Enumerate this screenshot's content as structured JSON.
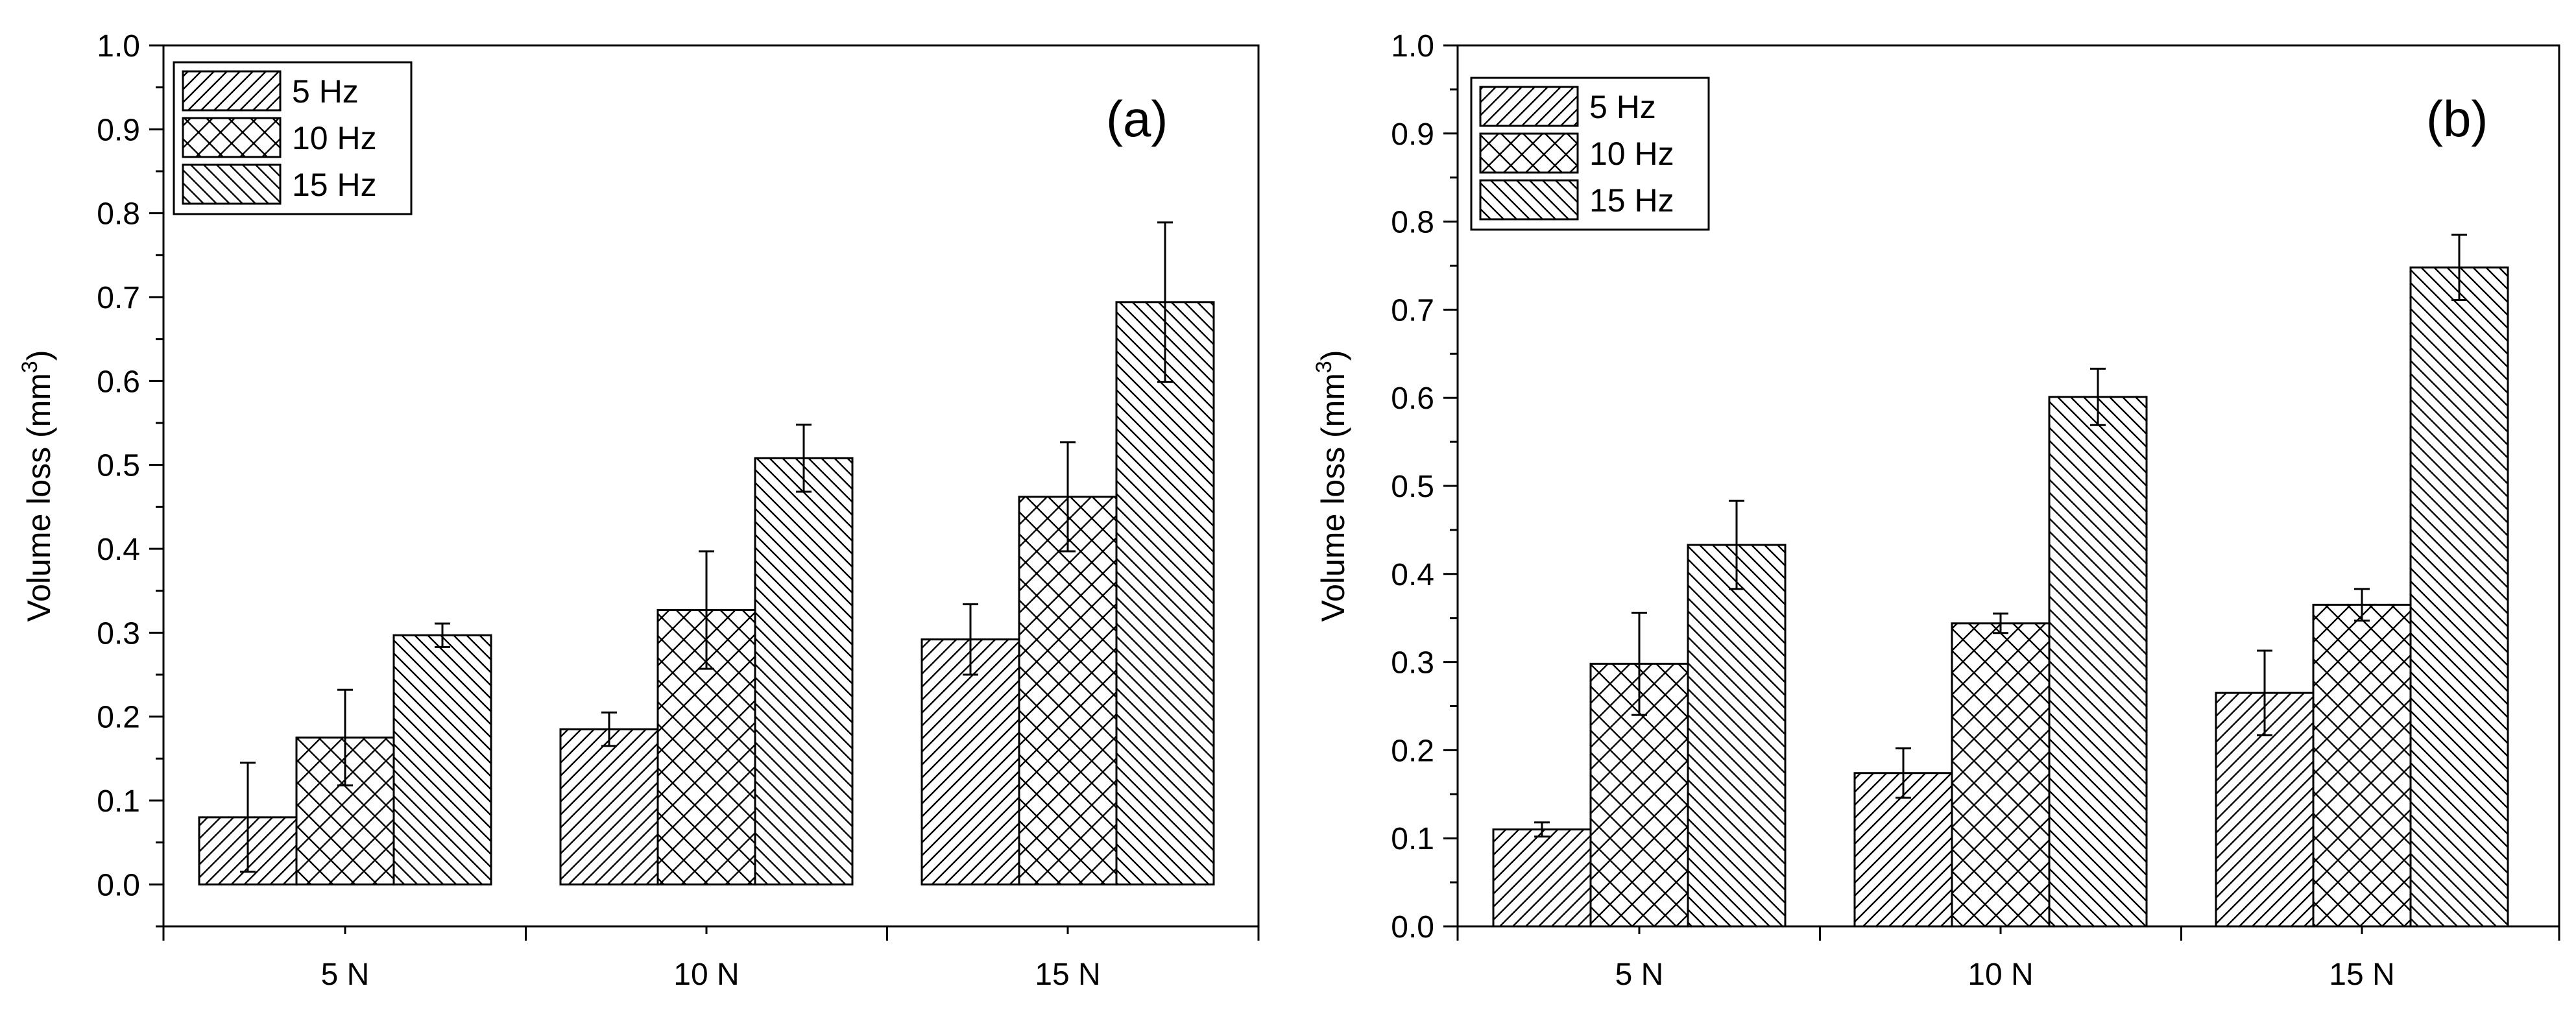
{
  "chart_data": [
    {
      "type": "bar",
      "panel_label": "(a)",
      "categories": [
        "5 N",
        "10 N",
        "15 N"
      ],
      "series": [
        {
          "name": "5 Hz",
          "pattern": "diag-right",
          "values": [
            0.08,
            0.185,
            0.292
          ],
          "errors": [
            0.065,
            0.02,
            0.042
          ]
        },
        {
          "name": "10 Hz",
          "pattern": "crosshatch",
          "values": [
            0.175,
            0.327,
            0.462
          ],
          "errors": [
            0.057,
            0.07,
            0.065
          ]
        },
        {
          "name": "15 Hz",
          "pattern": "diag-left",
          "values": [
            0.297,
            0.508,
            0.694
          ],
          "errors": [
            0.014,
            0.04,
            0.095
          ]
        }
      ],
      "ylabel": "Volume loss (mm",
      "ylabel_sup": "3",
      "ylabel_end": ")",
      "ylim": [
        -0.05,
        1.0
      ],
      "yticks": [
        "0.0",
        "0.1",
        "0.2",
        "0.3",
        "0.4",
        "0.5",
        "0.6",
        "0.7",
        "0.8",
        "0.9",
        "1.0"
      ],
      "legend": "top-left",
      "grid": false
    },
    {
      "type": "bar",
      "panel_label": "(b)",
      "categories": [
        "5 N",
        "10 N",
        "15 N"
      ],
      "series": [
        {
          "name": "5 Hz",
          "pattern": "diag-right",
          "values": [
            0.11,
            0.174,
            0.265
          ],
          "errors": [
            0.008,
            0.028,
            0.048
          ]
        },
        {
          "name": "10 Hz",
          "pattern": "crosshatch",
          "values": [
            0.298,
            0.344,
            0.365
          ],
          "errors": [
            0.058,
            0.011,
            0.018
          ]
        },
        {
          "name": "15 Hz",
          "pattern": "diag-left",
          "values": [
            0.433,
            0.601,
            0.748
          ],
          "errors": [
            0.05,
            0.032,
            0.037
          ]
        }
      ],
      "ylabel": "Volume loss (mm",
      "ylabel_sup": "3",
      "ylabel_end": ")",
      "ylim": [
        0.0,
        1.0
      ],
      "yticks": [
        "0.0",
        "0.1",
        "0.2",
        "0.3",
        "0.4",
        "0.5",
        "0.6",
        "0.7",
        "0.8",
        "0.9",
        "1.0"
      ],
      "legend": "top-left",
      "grid": false
    }
  ]
}
